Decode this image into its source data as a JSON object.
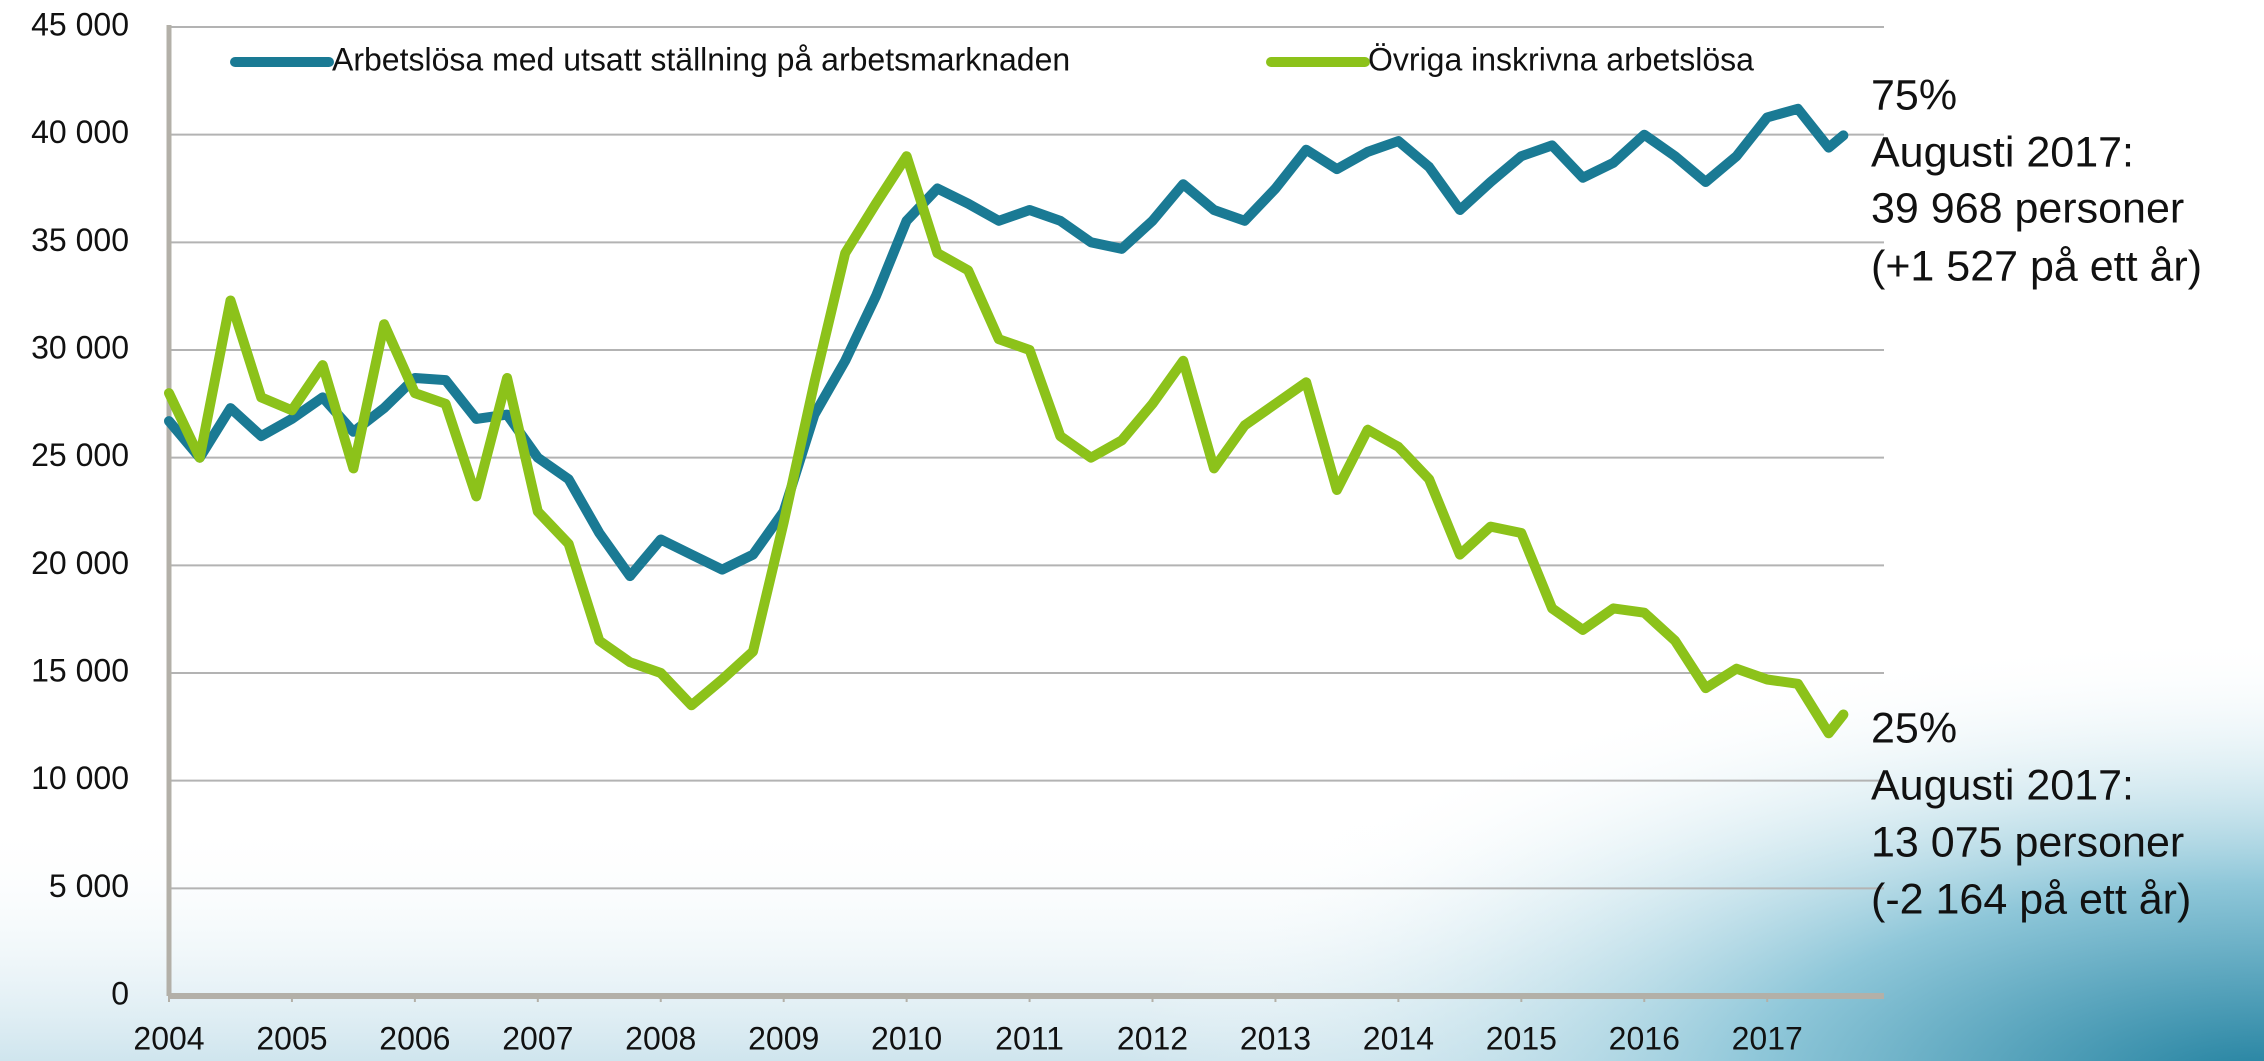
{
  "chart_data": {
    "type": "line",
    "x": [
      2004,
      2004.25,
      2004.5,
      2004.75,
      2005,
      2005.25,
      2005.5,
      2005.75,
      2006,
      2006.25,
      2006.5,
      2006.75,
      2007,
      2007.25,
      2007.5,
      2007.75,
      2008,
      2008.25,
      2008.5,
      2008.75,
      2009,
      2009.25,
      2009.5,
      2009.75,
      2010,
      2010.25,
      2010.5,
      2010.75,
      2011,
      2011.25,
      2011.5,
      2011.75,
      2012,
      2012.25,
      2012.5,
      2012.75,
      2013,
      2013.25,
      2013.5,
      2013.75,
      2014,
      2014.25,
      2014.5,
      2014.75,
      2015,
      2015.25,
      2015.5,
      2015.75,
      2016,
      2016.25,
      2016.5,
      2016.75,
      2017,
      2017.25,
      2017.5,
      2017.62
    ],
    "series": [
      {
        "name": "Arbetslösa med utsatt ställning på arbetsmarknaden",
        "color": "#1a7a94",
        "values": [
          26700,
          25000,
          27300,
          26000,
          26800,
          27800,
          26200,
          27300,
          28700,
          28600,
          26800,
          27000,
          25000,
          24000,
          21500,
          19500,
          21200,
          20500,
          19800,
          20500,
          22500,
          27000,
          29500,
          32500,
          36000,
          37500,
          36800,
          36000,
          36500,
          36000,
          35000,
          34700,
          36000,
          37700,
          36500,
          36000,
          37500,
          39300,
          38400,
          39200,
          39700,
          38500,
          36500,
          37800,
          39000,
          39500,
          38000,
          38700,
          40000,
          39000,
          37800,
          39000,
          40800,
          41200,
          39400,
          39968
        ]
      },
      {
        "name": "Övriga inskrivna arbetslösa",
        "color": "#8cc21a",
        "values": [
          28000,
          25000,
          32300,
          27800,
          27200,
          29300,
          24500,
          31200,
          28000,
          27500,
          23200,
          28700,
          22500,
          21000,
          16500,
          15500,
          15000,
          13500,
          14700,
          16000,
          22000,
          28500,
          34500,
          36800,
          39000,
          34500,
          33700,
          30500,
          30000,
          26000,
          25000,
          25800,
          27500,
          29500,
          24500,
          26500,
          27500,
          28500,
          23500,
          26300,
          25500,
          24000,
          20500,
          21800,
          21500,
          18000,
          17000,
          18000,
          17800,
          16500,
          14300,
          15200,
          14700,
          14500,
          12200,
          13075
        ]
      }
    ],
    "xlim": [
      2004,
      2017.95
    ],
    "xticks": [
      2004,
      2005,
      2006,
      2007,
      2008,
      2009,
      2010,
      2011,
      2012,
      2013,
      2014,
      2015,
      2016,
      2017
    ],
    "ylim": [
      0,
      45000
    ],
    "yticks": [
      0,
      {
        "value": 5000,
        "label": "5 000"
      },
      {
        "value": 10000,
        "label": "10 000"
      },
      {
        "value": 15000,
        "label": "15 000"
      },
      {
        "value": 20000,
        "label": "20 000"
      },
      {
        "value": 25000,
        "label": "25 000"
      },
      {
        "value": 30000,
        "label": "30 000"
      },
      {
        "value": 35000,
        "label": "35 000"
      },
      {
        "value": 40000,
        "label": "40 000"
      },
      {
        "value": 45000,
        "label": "45 000"
      }
    ],
    "grid": true,
    "legend": "top",
    "annotations": [
      [
        "75%",
        "Augusti 2017:",
        "39 968 personer",
        "(+1 527 på ett år)"
      ],
      [
        "25%",
        "Augusti 2017:",
        "13 075 personer",
        "(-2 164 på ett år)"
      ]
    ]
  }
}
